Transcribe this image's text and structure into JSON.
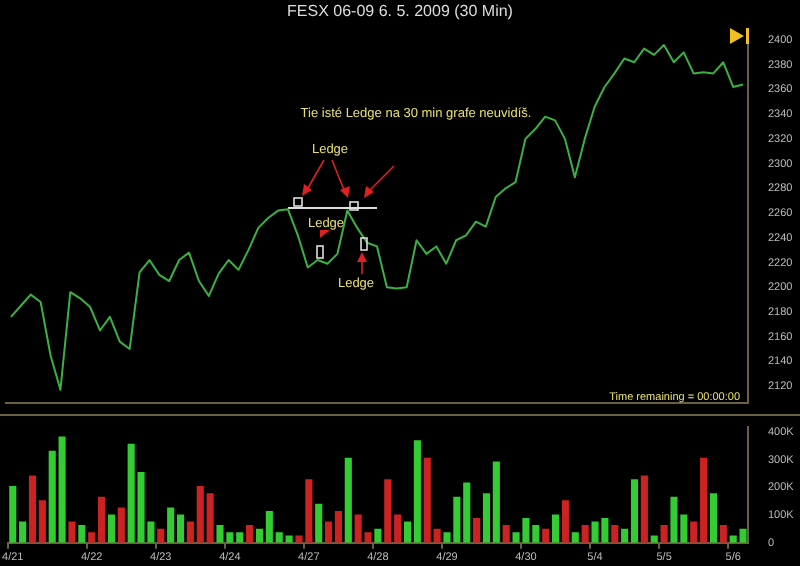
{
  "chart_data": [
    {
      "type": "line",
      "title": "FESX 06-09  6. 5. 2009 (30 Min)",
      "tick_labels": "y",
      "grid": false,
      "legend": false,
      "marker": "none",
      "categories": [
        null,
        null,
        null,
        null,
        null,
        null,
        null,
        null,
        null,
        null,
        null,
        null,
        null,
        null,
        null,
        null,
        null,
        null,
        null,
        null,
        null,
        null,
        null,
        null,
        null,
        null,
        null,
        null,
        null,
        null,
        null,
        null,
        null,
        null,
        null,
        null,
        null,
        null,
        null,
        null,
        null,
        null,
        null,
        null,
        null,
        null,
        null,
        null,
        null,
        null,
        null,
        null,
        null,
        null,
        null,
        null,
        null,
        null,
        null,
        null,
        null,
        null,
        null,
        null,
        null,
        null,
        null,
        null,
        null,
        null,
        null,
        null,
        null,
        null,
        null
      ],
      "series": [
        {
          "color": "#3cb043",
          "values": [
            2176,
            2185,
            2194,
            2188,
            2145,
            2117,
            2196,
            2191,
            2184,
            2165,
            2176,
            2156,
            2150,
            2212,
            2222,
            2210,
            2205,
            2222,
            2228,
            2205,
            2193,
            2211,
            2222,
            2214,
            2230,
            2248,
            2256,
            2262,
            2263,
            2242,
            2216,
            2222,
            2219,
            2227,
            2262,
            2248,
            2236,
            2233,
            2200,
            2199,
            2200,
            2238,
            2227,
            2233,
            2219,
            2238,
            2242,
            2253,
            2249,
            2273,
            2280,
            2285,
            2320,
            2328,
            2338,
            2335,
            2320,
            2289,
            2320,
            2346,
            2362,
            2373,
            2385,
            2382,
            2393,
            2388,
            2396,
            2382,
            2390,
            2373,
            2374,
            2373,
            2382,
            2362,
            2364
          ]
        },
        {
          "color": "#dddddd",
          "values": [
            null,
            null,
            null,
            null,
            null,
            null,
            null,
            null,
            null,
            null,
            null,
            null,
            null,
            null,
            null,
            null,
            null,
            null,
            null,
            null,
            null,
            null,
            null,
            null,
            null,
            null,
            null,
            null,
            2264,
            2264,
            2264,
            2264,
            2264,
            2264,
            2264,
            2264,
            2264,
            2264,
            null,
            null,
            null,
            null,
            null,
            null,
            null,
            null,
            null,
            null,
            null,
            null,
            null,
            null,
            null,
            null,
            null,
            null,
            null,
            null,
            null,
            null,
            null,
            null,
            null,
            null,
            null,
            null,
            null,
            null,
            null,
            null,
            null,
            null,
            null,
            null,
            null
          ]
        }
      ],
      "ylim": [
        2106,
        2406
      ],
      "yticks": [
        2120,
        2140,
        2160,
        2180,
        2200,
        2220,
        2240,
        2260,
        2280,
        2300,
        2320,
        2340,
        2360,
        2380,
        2400
      ],
      "annotations": [
        "Tie isté Ledge na 30 min grafe neuvidíš.",
        "Ledge",
        "Ledge",
        "Ledge",
        "Time remaining = 00:00:00"
      ]
    },
    {
      "type": "bar",
      "grid": false,
      "legend": false,
      "categories": [
        "4/21",
        null,
        null,
        null,
        null,
        null,
        null,
        null,
        "4/22",
        null,
        null,
        null,
        null,
        null,
        null,
        "4/23",
        null,
        null,
        null,
        null,
        null,
        null,
        "4/24",
        null,
        null,
        null,
        null,
        null,
        null,
        null,
        "4/27",
        null,
        null,
        null,
        null,
        null,
        null,
        "4/28",
        null,
        null,
        null,
        null,
        null,
        null,
        "4/29",
        null,
        null,
        null,
        null,
        null,
        null,
        null,
        "4/30",
        null,
        null,
        null,
        null,
        null,
        null,
        "5/4",
        null,
        null,
        null,
        null,
        null,
        null,
        "5/5",
        null,
        null,
        null,
        null,
        null,
        null,
        "5/6",
        null
      ],
      "values": [
        205,
        77,
        243,
        154,
        333,
        384,
        77,
        64,
        38,
        166,
        102,
        128,
        358,
        256,
        77,
        51,
        128,
        102,
        77,
        205,
        179,
        64,
        38,
        38,
        64,
        51,
        115,
        38,
        26,
        26,
        230,
        141,
        77,
        115,
        307,
        102,
        38,
        51,
        230,
        102,
        77,
        371,
        307,
        51,
        38,
        166,
        218,
        90,
        179,
        294,
        64,
        38,
        90,
        64,
        51,
        102,
        154,
        38,
        64,
        77,
        90,
        64,
        51,
        230,
        243,
        26,
        64,
        166,
        102,
        77,
        307,
        179,
        64,
        26,
        51
      ],
      "colors": [
        "#33cc33",
        "#33cc33",
        "#cc2222",
        "#cc2222",
        "#33cc33",
        "#33cc33",
        "#cc2222",
        "#33cc33",
        "#cc2222",
        "#cc2222",
        "#33cc33",
        "#cc2222",
        "#33cc33",
        "#33cc33",
        "#33cc33",
        "#cc2222",
        "#33cc33",
        "#33cc33",
        "#cc2222",
        "#cc2222",
        "#cc2222",
        "#33cc33",
        "#33cc33",
        "#33cc33",
        "#cc2222",
        "#33cc33",
        "#33cc33",
        "#33cc33",
        "#33cc33",
        "#cc2222",
        "#cc2222",
        "#33cc33",
        "#cc2222",
        "#cc2222",
        "#33cc33",
        "#cc2222",
        "#cc2222",
        "#33cc33",
        "#cc2222",
        "#cc2222",
        "#33cc33",
        "#33cc33",
        "#cc2222",
        "#cc2222",
        "#33cc33",
        "#33cc33",
        "#33cc33",
        "#cc2222",
        "#33cc33",
        "#33cc33",
        "#cc2222",
        "#33cc33",
        "#33cc33",
        "#33cc33",
        "#cc2222",
        "#33cc33",
        "#cc2222",
        "#33cc33",
        "#cc2222",
        "#33cc33",
        "#33cc33",
        "#cc2222",
        "#33cc33",
        "#33cc33",
        "#cc2222",
        "#33cc33",
        "#cc2222",
        "#33cc33",
        "#33cc33",
        "#cc2222",
        "#cc2222",
        "#33cc33",
        "#cc2222",
        "#33cc33",
        "#33cc33"
      ],
      "ylim": [
        0,
        420
      ],
      "yticks": [
        0,
        {
          "value": 100,
          "label": "100K"
        },
        {
          "value": 200,
          "label": "200K"
        },
        {
          "value": 300,
          "label": "300K"
        },
        {
          "value": 400,
          "label": "400K"
        }
      ]
    }
  ]
}
